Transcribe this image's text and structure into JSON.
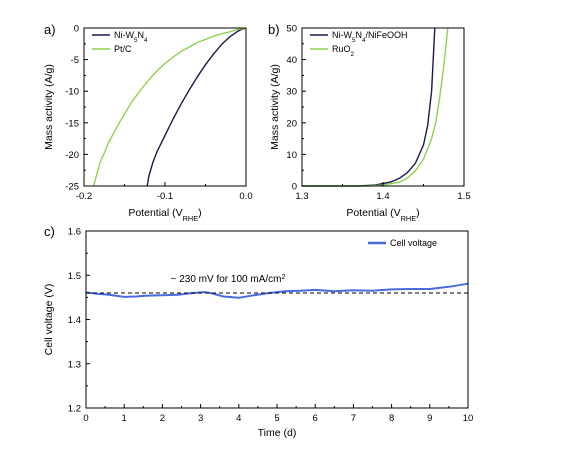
{
  "chart_data": [
    {
      "panel": "a)",
      "type": "line",
      "xlabel": "Potential (V",
      "xlabel_sub": "RHE",
      "xlabel_end": ")",
      "ylabel": "Mass activity (A/g)",
      "xlim": [
        -0.2,
        0.0
      ],
      "ylim": [
        -25,
        0
      ],
      "xticks": [
        -0.2,
        -0.1,
        0.0
      ],
      "xtick_labels": [
        "-0.2",
        "-0.1",
        "0.0"
      ],
      "yticks": [
        0,
        -5,
        -10,
        -15,
        -20,
        -25
      ],
      "ytick_labels": [
        "0",
        "-5",
        "-10",
        "-15",
        "-20",
        "-25"
      ],
      "legend_position": "top-left",
      "series": [
        {
          "name": "Ni-W5N4",
          "legend": {
            "parts": [
              [
                "Ni-W",
                "normal"
              ],
              [
                "5",
                "sub"
              ],
              [
                "N",
                "normal"
              ],
              [
                "4",
                "sub"
              ]
            ]
          },
          "color": "#1b1a4e",
          "points": [
            [
              0.0,
              0.0
            ],
            [
              -0.005,
              -0.2
            ],
            [
              -0.01,
              -0.5
            ],
            [
              -0.02,
              -1.4
            ],
            [
              -0.03,
              -2.6
            ],
            [
              -0.04,
              -4.1
            ],
            [
              -0.05,
              -5.8
            ],
            [
              -0.06,
              -7.7
            ],
            [
              -0.07,
              -9.8
            ],
            [
              -0.08,
              -12.0
            ],
            [
              -0.09,
              -14.4
            ],
            [
              -0.1,
              -17.0
            ],
            [
              -0.11,
              -19.6
            ],
            [
              -0.115,
              -21.3
            ],
            [
              -0.12,
              -23.5
            ],
            [
              -0.122,
              -25.0
            ]
          ]
        },
        {
          "name": "Pt/C",
          "legend": {
            "parts": [
              [
                "Pt/C",
                "normal"
              ]
            ]
          },
          "color": "#8fd14f",
          "points": [
            [
              0.0,
              0.0
            ],
            [
              -0.01,
              -0.2
            ],
            [
              -0.02,
              -0.6
            ],
            [
              -0.03,
              -0.9
            ],
            [
              -0.04,
              -1.3
            ],
            [
              -0.05,
              -1.8
            ],
            [
              -0.06,
              -2.3
            ],
            [
              -0.07,
              -3.0
            ],
            [
              -0.08,
              -3.7
            ],
            [
              -0.09,
              -4.6
            ],
            [
              -0.1,
              -5.6
            ],
            [
              -0.11,
              -6.8
            ],
            [
              -0.12,
              -8.2
            ],
            [
              -0.13,
              -9.8
            ],
            [
              -0.14,
              -11.5
            ],
            [
              -0.15,
              -13.6
            ],
            [
              -0.16,
              -15.8
            ],
            [
              -0.17,
              -18.2
            ],
            [
              -0.175,
              -19.8
            ],
            [
              -0.18,
              -21.2
            ],
            [
              -0.185,
              -23.5
            ],
            [
              -0.188,
              -25.0
            ]
          ]
        }
      ]
    },
    {
      "panel": "b)",
      "type": "line",
      "xlabel": "Potential (V",
      "xlabel_sub": "RHE",
      "xlabel_end": ")",
      "ylabel": "Mass activity (A/g)",
      "xlim": [
        1.3,
        1.5
      ],
      "ylim": [
        0,
        50
      ],
      "xticks": [
        1.3,
        1.4,
        1.5
      ],
      "xtick_labels": [
        "1.3",
        "1.4",
        "1.5"
      ],
      "yticks": [
        0,
        10,
        20,
        30,
        40,
        50
      ],
      "ytick_labels": [
        "0",
        "10",
        "20",
        "30",
        "40",
        "50"
      ],
      "legend_position": "top-left",
      "series": [
        {
          "name": "Ni-W5N4/NiFeOOH",
          "legend": {
            "parts": [
              [
                "Ni-W",
                "normal"
              ],
              [
                "5",
                "sub"
              ],
              [
                "N",
                "normal"
              ],
              [
                "4",
                "sub"
              ],
              [
                "/NiFeOOH",
                "normal"
              ]
            ]
          },
          "color": "#1b1a4e",
          "points": [
            [
              1.3,
              0.0
            ],
            [
              1.37,
              0.0
            ],
            [
              1.39,
              0.3
            ],
            [
              1.41,
              1.3
            ],
            [
              1.42,
              2.4
            ],
            [
              1.43,
              4.2
            ],
            [
              1.44,
              7.2
            ],
            [
              1.45,
              13.0
            ],
            [
              1.455,
              19.0
            ],
            [
              1.46,
              30.0
            ],
            [
              1.462,
              40.0
            ],
            [
              1.464,
              50.0
            ]
          ]
        },
        {
          "name": "RuO2",
          "legend": {
            "parts": [
              [
                "RuO",
                "normal"
              ],
              [
                "2",
                "sub"
              ]
            ]
          },
          "color": "#8fd14f",
          "points": [
            [
              1.3,
              0.0
            ],
            [
              1.38,
              0.0
            ],
            [
              1.4,
              0.3
            ],
            [
              1.42,
              1.2
            ],
            [
              1.43,
              2.5
            ],
            [
              1.44,
              4.8
            ],
            [
              1.45,
              8.5
            ],
            [
              1.46,
              15.0
            ],
            [
              1.465,
              20.0
            ],
            [
              1.47,
              28.0
            ],
            [
              1.475,
              38.0
            ],
            [
              1.48,
              50.0
            ]
          ]
        }
      ]
    },
    {
      "panel": "c)",
      "type": "line",
      "xlabel": "Time (d)",
      "ylabel": "Cell voltage (V)",
      "xlim": [
        0,
        10
      ],
      "ylim": [
        1.2,
        1.6
      ],
      "xticks": [
        0,
        1,
        2,
        3,
        4,
        5,
        6,
        7,
        8,
        9,
        10
      ],
      "xtick_labels": [
        "0",
        "1",
        "2",
        "3",
        "4",
        "5",
        "6",
        "7",
        "8",
        "9",
        "10"
      ],
      "yticks": [
        1.2,
        1.3,
        1.4,
        1.5,
        1.6
      ],
      "ytick_labels": [
        "1.2",
        "1.3",
        "1.4",
        "1.5",
        "1.6"
      ],
      "legend_position": "top-right",
      "reference_line": {
        "y": 1.46,
        "style": "dashed"
      },
      "annotation": {
        "text": "~ 230 mV for 100 mA/cm",
        "sup": "2"
      },
      "series": [
        {
          "name": "Cell voltage",
          "legend": {
            "parts": [
              [
                "Cell voltage",
                "normal"
              ]
            ]
          },
          "color": "#4a6be0",
          "points": [
            [
              0.0,
              1.461
            ],
            [
              0.3,
              1.458
            ],
            [
              0.6,
              1.456
            ],
            [
              1.0,
              1.451
            ],
            [
              1.3,
              1.452
            ],
            [
              1.6,
              1.454
            ],
            [
              2.0,
              1.455
            ],
            [
              2.4,
              1.456
            ],
            [
              2.8,
              1.46
            ],
            [
              3.1,
              1.462
            ],
            [
              3.3,
              1.459
            ],
            [
              3.6,
              1.452
            ],
            [
              4.0,
              1.449
            ],
            [
              4.4,
              1.455
            ],
            [
              4.8,
              1.46
            ],
            [
              5.2,
              1.464
            ],
            [
              5.6,
              1.465
            ],
            [
              6.0,
              1.467
            ],
            [
              6.5,
              1.464
            ],
            [
              7.0,
              1.466
            ],
            [
              7.5,
              1.465
            ],
            [
              8.0,
              1.468
            ],
            [
              8.5,
              1.469
            ],
            [
              9.0,
              1.469
            ],
            [
              9.5,
              1.474
            ],
            [
              10.0,
              1.481
            ]
          ]
        }
      ]
    }
  ]
}
